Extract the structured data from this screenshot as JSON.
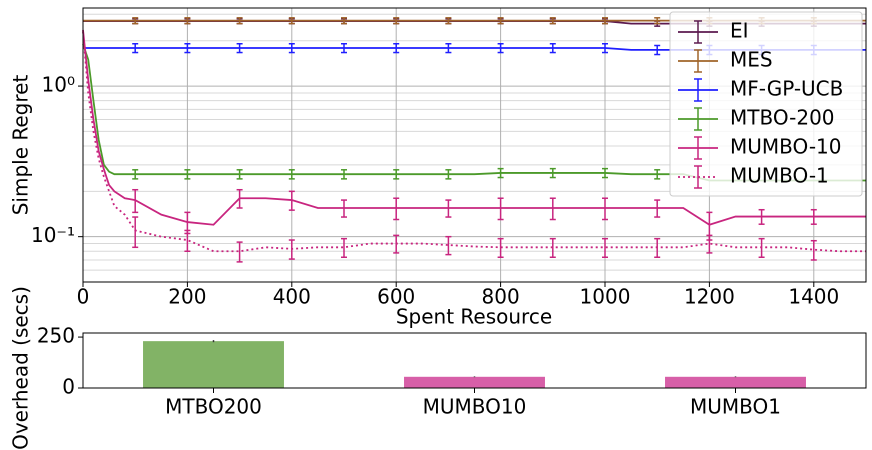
{
  "chart_data": [
    {
      "type": "line",
      "xlabel": "Spent Resource",
      "ylabel": "Simple Regret",
      "log_y": true,
      "grid": true,
      "legend": "upper right",
      "x": [
        0,
        10,
        20,
        30,
        40,
        50,
        60,
        80,
        100,
        150,
        200,
        250,
        300,
        350,
        400,
        450,
        500,
        550,
        600,
        650,
        700,
        750,
        800,
        850,
        900,
        950,
        1000,
        1050,
        1100,
        1150,
        1200,
        1250,
        1300,
        1350,
        1400,
        1450,
        1500
      ],
      "xlim": [
        0,
        1500
      ],
      "xticks": [
        0,
        200,
        400,
        600,
        800,
        1000,
        1200,
        1400
      ],
      "ylim": [
        0.05,
        3.3
      ],
      "yticks": [
        {
          "value": 0.1,
          "label": "10⁻¹"
        },
        {
          "value": 1,
          "label": "10⁰"
        }
      ],
      "series": [
        {
          "name": "EI",
          "color": "#5c1a4f",
          "linestyle": "solid",
          "values": [
            2.7,
            2.7,
            2.7,
            2.7,
            2.7,
            2.7,
            2.7,
            2.7,
            2.7,
            2.7,
            2.7,
            2.7,
            2.7,
            2.7,
            2.7,
            2.7,
            2.7,
            2.7,
            2.7,
            2.7,
            2.7,
            2.7,
            2.7,
            2.7,
            2.7,
            2.7,
            2.7,
            2.6,
            2.6,
            2.6,
            2.6,
            2.6,
            2.6,
            2.6,
            2.6,
            2.6,
            2.6
          ],
          "errors": [
            null,
            null,
            null,
            null,
            null,
            null,
            null,
            null,
            0.1,
            null,
            0.1,
            null,
            0.1,
            null,
            0.1,
            null,
            0.1,
            null,
            0.1,
            null,
            0.1,
            null,
            0.1,
            null,
            0.1,
            null,
            0.1,
            null,
            0.1,
            null,
            0.1,
            null,
            0.1,
            null,
            0.1,
            null,
            null
          ]
        },
        {
          "name": "MES",
          "color": "#a0642a",
          "linestyle": "solid",
          "values": [
            2.72,
            2.72,
            2.72,
            2.72,
            2.72,
            2.72,
            2.72,
            2.72,
            2.72,
            2.72,
            2.72,
            2.72,
            2.72,
            2.72,
            2.72,
            2.72,
            2.72,
            2.72,
            2.72,
            2.72,
            2.72,
            2.72,
            2.72,
            2.72,
            2.72,
            2.72,
            2.72,
            2.72,
            2.72,
            2.72,
            2.72,
            2.72,
            2.72,
            2.72,
            2.72,
            2.72,
            2.72
          ],
          "errors": [
            null,
            null,
            null,
            null,
            null,
            null,
            null,
            null,
            0.12,
            null,
            0.12,
            null,
            0.12,
            null,
            0.12,
            null,
            0.12,
            null,
            0.12,
            null,
            0.12,
            null,
            0.12,
            null,
            0.12,
            null,
            0.12,
            null,
            0.12,
            null,
            0.12,
            null,
            0.12,
            null,
            0.12,
            null,
            null
          ]
        },
        {
          "name": "MF-GP-UCB",
          "color": "#1f1fff",
          "linestyle": "solid",
          "values": [
            1.79,
            1.79,
            1.79,
            1.79,
            1.79,
            1.79,
            1.79,
            1.79,
            1.79,
            1.79,
            1.79,
            1.79,
            1.79,
            1.79,
            1.79,
            1.79,
            1.79,
            1.79,
            1.79,
            1.79,
            1.79,
            1.79,
            1.79,
            1.79,
            1.79,
            1.79,
            1.79,
            1.74,
            1.74,
            1.74,
            1.74,
            1.74,
            1.74,
            1.74,
            1.74,
            1.74,
            1.74
          ],
          "errors": [
            null,
            null,
            null,
            null,
            null,
            null,
            null,
            null,
            0.12,
            null,
            0.12,
            null,
            0.12,
            null,
            0.12,
            null,
            0.12,
            null,
            0.12,
            null,
            0.12,
            null,
            0.12,
            null,
            0.12,
            null,
            0.12,
            null,
            0.12,
            null,
            0.12,
            null,
            0.12,
            null,
            0.12,
            null,
            null
          ]
        },
        {
          "name": "MTBO-200",
          "color": "#4c9a2a",
          "linestyle": "solid",
          "values": [
            1.9,
            1.5,
            0.8,
            0.44,
            0.3,
            0.27,
            0.26,
            0.26,
            0.26,
            0.26,
            0.26,
            0.26,
            0.26,
            0.26,
            0.26,
            0.26,
            0.26,
            0.26,
            0.26,
            0.26,
            0.26,
            0.26,
            0.265,
            0.265,
            0.265,
            0.265,
            0.265,
            0.26,
            0.26,
            0.26,
            0.236,
            0.236,
            0.236,
            0.236,
            0.236,
            0.236,
            0.236
          ],
          "errors": [
            null,
            null,
            null,
            null,
            null,
            null,
            null,
            null,
            0.018,
            null,
            0.018,
            null,
            0.018,
            null,
            0.018,
            null,
            0.018,
            null,
            0.018,
            null,
            0.018,
            null,
            0.018,
            null,
            0.018,
            null,
            0.018,
            null,
            0.018,
            null,
            null,
            null,
            null,
            null,
            null,
            null,
            null
          ]
        },
        {
          "name": "MUMBO-10",
          "color": "#c8257f",
          "linestyle": "solid",
          "values": [
            2.36,
            1.1,
            0.6,
            0.37,
            0.28,
            0.22,
            0.2,
            0.18,
            0.175,
            0.14,
            0.125,
            0.12,
            0.18,
            0.18,
            0.175,
            0.155,
            0.155,
            0.155,
            0.155,
            0.155,
            0.155,
            0.155,
            0.155,
            0.155,
            0.155,
            0.155,
            0.155,
            0.155,
            0.155,
            0.155,
            0.12,
            0.136,
            0.136,
            0.136,
            0.136,
            0.136,
            0.136
          ],
          "errors": [
            null,
            null,
            null,
            null,
            null,
            null,
            null,
            null,
            0.03,
            null,
            0.02,
            null,
            0.025,
            null,
            0.025,
            null,
            0.02,
            null,
            0.025,
            null,
            0.02,
            null,
            0.025,
            null,
            0.025,
            null,
            0.025,
            null,
            0.02,
            null,
            0.025,
            null,
            0.015,
            null,
            0.015,
            null,
            null
          ]
        },
        {
          "name": "MUMBO-1",
          "color": "#c8257f",
          "linestyle": "dotted",
          "values": [
            2.3,
            0.9,
            0.5,
            0.33,
            0.25,
            0.2,
            0.16,
            0.14,
            0.11,
            0.1,
            0.095,
            0.08,
            0.08,
            0.085,
            0.083,
            0.085,
            0.085,
            0.09,
            0.09,
            0.09,
            0.088,
            0.086,
            0.085,
            0.085,
            0.085,
            0.085,
            0.085,
            0.085,
            0.085,
            0.085,
            0.09,
            0.085,
            0.085,
            0.085,
            0.082,
            0.08,
            0.08
          ],
          "errors": [
            null,
            null,
            null,
            null,
            null,
            null,
            null,
            null,
            0.025,
            null,
            0.015,
            null,
            0.012,
            null,
            0.012,
            null,
            0.012,
            null,
            0.012,
            null,
            0.012,
            null,
            0.012,
            null,
            0.012,
            null,
            0.012,
            null,
            0.012,
            null,
            0.012,
            null,
            0.012,
            null,
            0.012,
            null,
            null
          ]
        }
      ]
    },
    {
      "type": "bar",
      "ylabel": "Overhead (secs)",
      "categories": [
        "MTBO200",
        "MUMBO10",
        "MUMBO1"
      ],
      "values": [
        230,
        55,
        55
      ],
      "errors": [
        5,
        2,
        2
      ],
      "colors": [
        "#82b366",
        "#d75fa8",
        "#d75fa8"
      ],
      "ylim": [
        0,
        270
      ],
      "yticks": [
        0,
        250
      ]
    }
  ]
}
